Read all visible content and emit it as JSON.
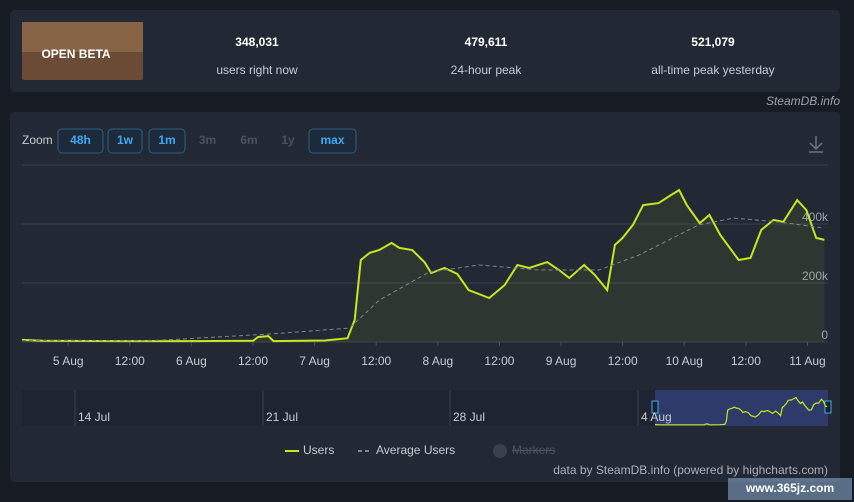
{
  "header": {
    "image_text": "OPEN BETA",
    "stats": [
      {
        "value": "348,031",
        "label": "users right now"
      },
      {
        "value": "479,611",
        "label": "24-hour peak"
      },
      {
        "value": "521,079",
        "label": "all-time peak yesterday"
      }
    ],
    "source": "SteamDB.info"
  },
  "zoom": {
    "label": "Zoom",
    "buttons": [
      {
        "text": "48h",
        "enabled": true
      },
      {
        "text": "1w",
        "enabled": true
      },
      {
        "text": "1m",
        "enabled": true
      },
      {
        "text": "3m",
        "enabled": false
      },
      {
        "text": "6m",
        "enabled": false
      },
      {
        "text": "1y",
        "enabled": false
      },
      {
        "text": "max",
        "enabled": true
      }
    ]
  },
  "navigator": {
    "labels": [
      "14 Jul",
      "21 Jul",
      "28 Jul",
      "4 Aug"
    ]
  },
  "credit": "data by SteamDB.info (powered by highcharts.com)",
  "watermark": "www.365jz.com",
  "chart_data": {
    "type": "line",
    "xlim": [
      -9,
      148
    ],
    "ylim": [
      0,
      600000
    ],
    "xticks": [
      {
        "value": 0,
        "label": "5 Aug"
      },
      {
        "value": 12,
        "label": "12:00"
      },
      {
        "value": 24,
        "label": "6 Aug"
      },
      {
        "value": 36,
        "label": "12:00"
      },
      {
        "value": 48,
        "label": "7 Aug"
      },
      {
        "value": 60,
        "label": "12:00"
      },
      {
        "value": 72,
        "label": "8 Aug"
      },
      {
        "value": 84,
        "label": "12:00"
      },
      {
        "value": 96,
        "label": "9 Aug"
      },
      {
        "value": 108,
        "label": "12:00"
      },
      {
        "value": 120,
        "label": "10 Aug"
      },
      {
        "value": 132,
        "label": "12:00"
      },
      {
        "value": 144,
        "label": "11 Aug"
      }
    ],
    "yticks": [
      0,
      {
        "value": 200000,
        "label": "200k"
      },
      {
        "value": 400000,
        "label": "400k"
      }
    ],
    "grid": true,
    "legend_extra": "Markers",
    "series": [
      {
        "name": "Users",
        "color": "#c6e61e",
        "dashed": false,
        "x": [
          -9,
          -5,
          10,
          25,
          36,
          37,
          39,
          40,
          50,
          54.4,
          55.8,
          57,
          58.7,
          60.6,
          63,
          64.5,
          67,
          69.4,
          70.7,
          73.3,
          75.8,
          78,
          82,
          85,
          87.5,
          89.8,
          93.3,
          95.6,
          97.6,
          100.5,
          102.6,
          105,
          106.5,
          108,
          110,
          112,
          115,
          117.4,
          119,
          120.5,
          123,
          124.9,
          127,
          130.6,
          132.9,
          135,
          137.4,
          139.3,
          142,
          143.8,
          145.7,
          147.3
        ],
        "values": [
          7000,
          4000,
          3000,
          3000,
          4000,
          17000,
          20000,
          3000,
          5000,
          13000,
          75000,
          278000,
          302000,
          312000,
          336000,
          319000,
          312000,
          271000,
          234000,
          251000,
          231000,
          176000,
          149000,
          193000,
          261000,
          251000,
          271000,
          244000,
          217000,
          261000,
          227000,
          176000,
          329000,
          353000,
          397000,
          464000,
          471000,
          498000,
          515000,
          464000,
          403000,
          431000,
          363000,
          278000,
          285000,
          380000,
          414000,
          407000,
          481000,
          447000,
          353000,
          346000
        ]
      },
      {
        "name": "Average Users",
        "color": "#80858e",
        "dashed": true,
        "x": [
          -9,
          16,
          39.3,
          54.8,
          60.6,
          70.3,
          80,
          91.7,
          103.4,
          111.2,
          122.8,
          129.6,
          138.4,
          147.3
        ],
        "values": [
          5000,
          4000,
          27000,
          47000,
          142000,
          237000,
          261000,
          244000,
          244000,
          295000,
          397000,
          420000,
          407000,
          386000
        ]
      }
    ]
  }
}
